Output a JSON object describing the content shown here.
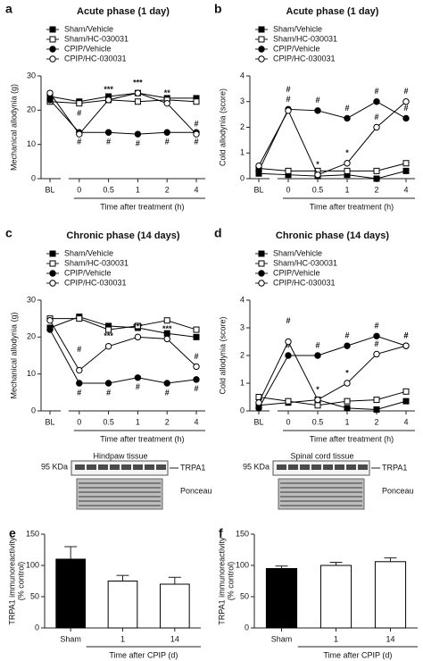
{
  "chart_data": [
    {
      "type": "line",
      "panel": "a",
      "title": "Acute phase (1 day)",
      "ylabel": "Mechanical allodynia (g)",
      "xlabel": "Time after treatment (h)",
      "categories": [
        "BL",
        "0",
        "0.5",
        "1",
        "2",
        "4"
      ],
      "ylim": [
        0,
        30
      ],
      "yticks": [
        0,
        10,
        20,
        30
      ],
      "legend": "top-left",
      "series": [
        {
          "name": "Sham/Vehicle",
          "marker": "square",
          "color": "#000000",
          "values": [
            24,
            22.5,
            24,
            25,
            23.5,
            23.5
          ]
        },
        {
          "name": "Sham/HC-030031",
          "marker": "square",
          "color": "#ffffff",
          "values": [
            22.5,
            22,
            23,
            22.5,
            23,
            22.5
          ]
        },
        {
          "name": "CPIP/Vehicle",
          "marker": "circle",
          "color": "#000000",
          "values": [
            23,
            13.5,
            13.5,
            13,
            13.5,
            13.5
          ],
          "significance": [
            null,
            "#",
            "#",
            "#",
            "#",
            "#"
          ]
        },
        {
          "name": "CPIP/HC-030031",
          "marker": "circle",
          "color": "#ffffff",
          "values": [
            25,
            13,
            23,
            25,
            22,
            13
          ],
          "significance": [
            null,
            "#",
            "***",
            "***",
            "**",
            "#"
          ]
        }
      ]
    },
    {
      "type": "line",
      "panel": "b",
      "title": "Acute phase (1 day)",
      "ylabel": "Cold allodynia (score)",
      "xlabel": "Time after treatment (h)",
      "categories": [
        "BL",
        "0",
        "0.5",
        "1",
        "2",
        "4"
      ],
      "ylim": [
        0,
        4
      ],
      "yticks": [
        0,
        1,
        2,
        3,
        4
      ],
      "legend": "top-left",
      "series": [
        {
          "name": "Sham/Vehicle",
          "marker": "square",
          "color": "#000000",
          "values": [
            0.2,
            0.15,
            0.1,
            0.15,
            0,
            0.3
          ]
        },
        {
          "name": "Sham/HC-030031",
          "marker": "square",
          "color": "#ffffff",
          "values": [
            0.4,
            0.3,
            0.3,
            0.3,
            0.3,
            0.6
          ]
        },
        {
          "name": "CPIP/Vehicle",
          "marker": "circle",
          "color": "#000000",
          "values": [
            0.3,
            2.7,
            2.65,
            2.35,
            3.0,
            2.35
          ],
          "significance": [
            null,
            "#",
            "#",
            "#",
            "#",
            "#"
          ]
        },
        {
          "name": "CPIP/HC-030031",
          "marker": "circle",
          "color": "#ffffff",
          "values": [
            0.5,
            2.65,
            0.15,
            0.6,
            2.0,
            3.0
          ],
          "significance": [
            null,
            "#",
            "*",
            "*",
            "#",
            "#"
          ]
        }
      ]
    },
    {
      "type": "line",
      "panel": "c",
      "title": "Chronic phase (14 days)",
      "ylabel": "Mechanical allodynia (g)",
      "xlabel": "Time after treatment (h)",
      "categories": [
        "BL",
        "0",
        "0.5",
        "1",
        "2",
        "4"
      ],
      "ylim": [
        0,
        30
      ],
      "yticks": [
        0,
        10,
        20,
        30
      ],
      "legend": "top-left",
      "series": [
        {
          "name": "Sham/Vehicle",
          "marker": "square",
          "color": "#000000",
          "values": [
            22.5,
            25.5,
            23,
            22.5,
            21,
            20
          ]
        },
        {
          "name": "Sham/HC-030031",
          "marker": "square",
          "color": "#ffffff",
          "values": [
            25,
            25,
            22,
            23,
            24.5,
            22
          ]
        },
        {
          "name": "CPIP/Vehicle",
          "marker": "circle",
          "color": "#000000",
          "values": [
            22,
            7.5,
            7.5,
            9,
            7.5,
            8.5
          ],
          "significance": [
            null,
            "#",
            "#",
            "#",
            "#",
            "#"
          ]
        },
        {
          "name": "CPIP/HC-030031",
          "marker": "circle",
          "color": "#ffffff",
          "values": [
            24.5,
            11,
            17.5,
            20,
            19.5,
            12
          ],
          "significance": [
            null,
            "#",
            "***",
            "***",
            "***",
            "#"
          ]
        }
      ]
    },
    {
      "type": "line",
      "panel": "d",
      "title": "Chronic phase (14 days)",
      "ylabel": "Cold allodynia (score)",
      "xlabel": "Time after treatment (h)",
      "categories": [
        "BL",
        "0",
        "0.5",
        "1",
        "2",
        "4"
      ],
      "ylim": [
        0,
        4
      ],
      "yticks": [
        0,
        1,
        2,
        3,
        4
      ],
      "legend": "top-left",
      "series": [
        {
          "name": "Sham/Vehicle",
          "marker": "square",
          "color": "#000000",
          "values": [
            0.2,
            0.3,
            0.4,
            0.1,
            0.05,
            0.35
          ]
        },
        {
          "name": "Sham/HC-030031",
          "marker": "square",
          "color": "#ffffff",
          "values": [
            0.5,
            0.35,
            0.2,
            0.35,
            0.4,
            0.7
          ]
        },
        {
          "name": "CPIP/Vehicle",
          "marker": "circle",
          "color": "#000000",
          "values": [
            0.1,
            2.0,
            2.0,
            2.35,
            2.7,
            2.35
          ],
          "significance": [
            null,
            "#",
            "#",
            "#",
            "#",
            "#"
          ]
        },
        {
          "name": "CPIP/HC-030031",
          "marker": "circle",
          "color": "#ffffff",
          "values": [
            0.3,
            2.5,
            0.4,
            1.0,
            2.05,
            2.35
          ],
          "significance": [
            null,
            "#",
            "*",
            "*",
            "#",
            "#"
          ]
        }
      ]
    },
    {
      "type": "bar",
      "panel": "e",
      "ylabel": [
        "TRPA1 immunoreactivity",
        "(% control)"
      ],
      "xlabel": "Time after CPIP (d)",
      "categories": [
        "Sham",
        "1",
        "14"
      ],
      "values": [
        110,
        75,
        70
      ],
      "errors": [
        20,
        9,
        11
      ],
      "colors": [
        "#000000",
        "#ffffff",
        "#ffffff"
      ],
      "ylim": [
        0,
        150
      ],
      "yticks": [
        0,
        50,
        100,
        150
      ]
    },
    {
      "type": "bar",
      "panel": "f",
      "ylabel": [
        "TRPA1 immunoreactivity",
        "(% control)"
      ],
      "xlabel": "Time after CPIP (d)",
      "categories": [
        "Sham",
        "1",
        "14"
      ],
      "values": [
        95,
        100,
        106
      ],
      "errors": [
        4,
        5,
        6
      ],
      "colors": [
        "#000000",
        "#ffffff",
        "#ffffff"
      ],
      "ylim": [
        0,
        150
      ],
      "yticks": [
        0,
        50,
        100,
        150
      ]
    }
  ],
  "blots": [
    {
      "tissue": "Hindpaw tissue",
      "size": "95 KDa",
      "protein": "TRPA1",
      "stain": "Ponceau"
    },
    {
      "tissue": "Spinal cord tissue",
      "size": "95 KDa",
      "protein": "TRPA1",
      "stain": "Ponceau"
    }
  ]
}
